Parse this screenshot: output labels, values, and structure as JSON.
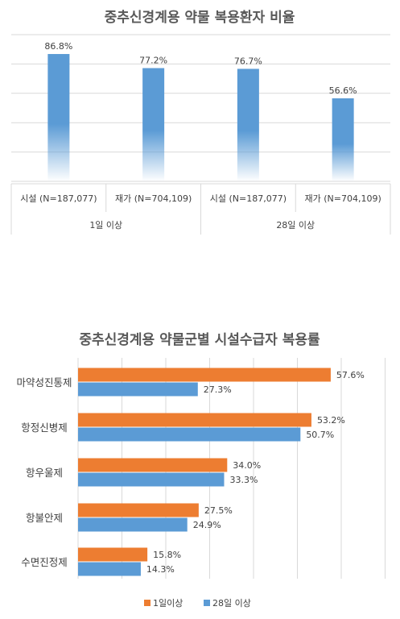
{
  "chart_data": [
    {
      "type": "bar",
      "title": "중추신경계용 약물 복용환자 비율",
      "categories": [
        "시설 (N=187,077)",
        "재가 (N=704,109)",
        "시설 (N=187,077)",
        "재가 (N=704,109)"
      ],
      "groups": [
        {
          "label": "1일 이상",
          "span": [
            0,
            1
          ]
        },
        {
          "label": "28일 이상",
          "span": [
            2,
            3
          ]
        }
      ],
      "values": [
        86.8,
        77.2,
        76.7,
        56.6
      ],
      "data_labels": [
        "86.8%",
        "77.2%",
        "76.7%",
        "56.6%"
      ],
      "ylim": [
        0,
        100
      ],
      "grid": true,
      "color": "#5B9BD5"
    },
    {
      "type": "bar",
      "orientation": "horizontal",
      "title": "중추신경계용 약물군별 시설수급자 복용률",
      "categories": [
        "마약성진통제",
        "항정신병제",
        "항우울제",
        "항불안제",
        "수면진정제"
      ],
      "series": [
        {
          "name": "1일이상",
          "values": [
            57.6,
            53.2,
            34.0,
            27.5,
            15.8
          ],
          "labels": [
            "57.6%",
            "53.2%",
            "34.0%",
            "27.5%",
            "15.8%"
          ],
          "color": "#ED7D31"
        },
        {
          "name": "28일 이상",
          "values": [
            27.3,
            50.7,
            33.3,
            24.9,
            14.3
          ],
          "labels": [
            "27.3%",
            "50.7%",
            "33.3%",
            "24.9%",
            "14.3%"
          ],
          "color": "#5B9BD5"
        }
      ],
      "xlim": [
        0,
        70
      ],
      "grid": true,
      "legend": "bottom"
    }
  ]
}
